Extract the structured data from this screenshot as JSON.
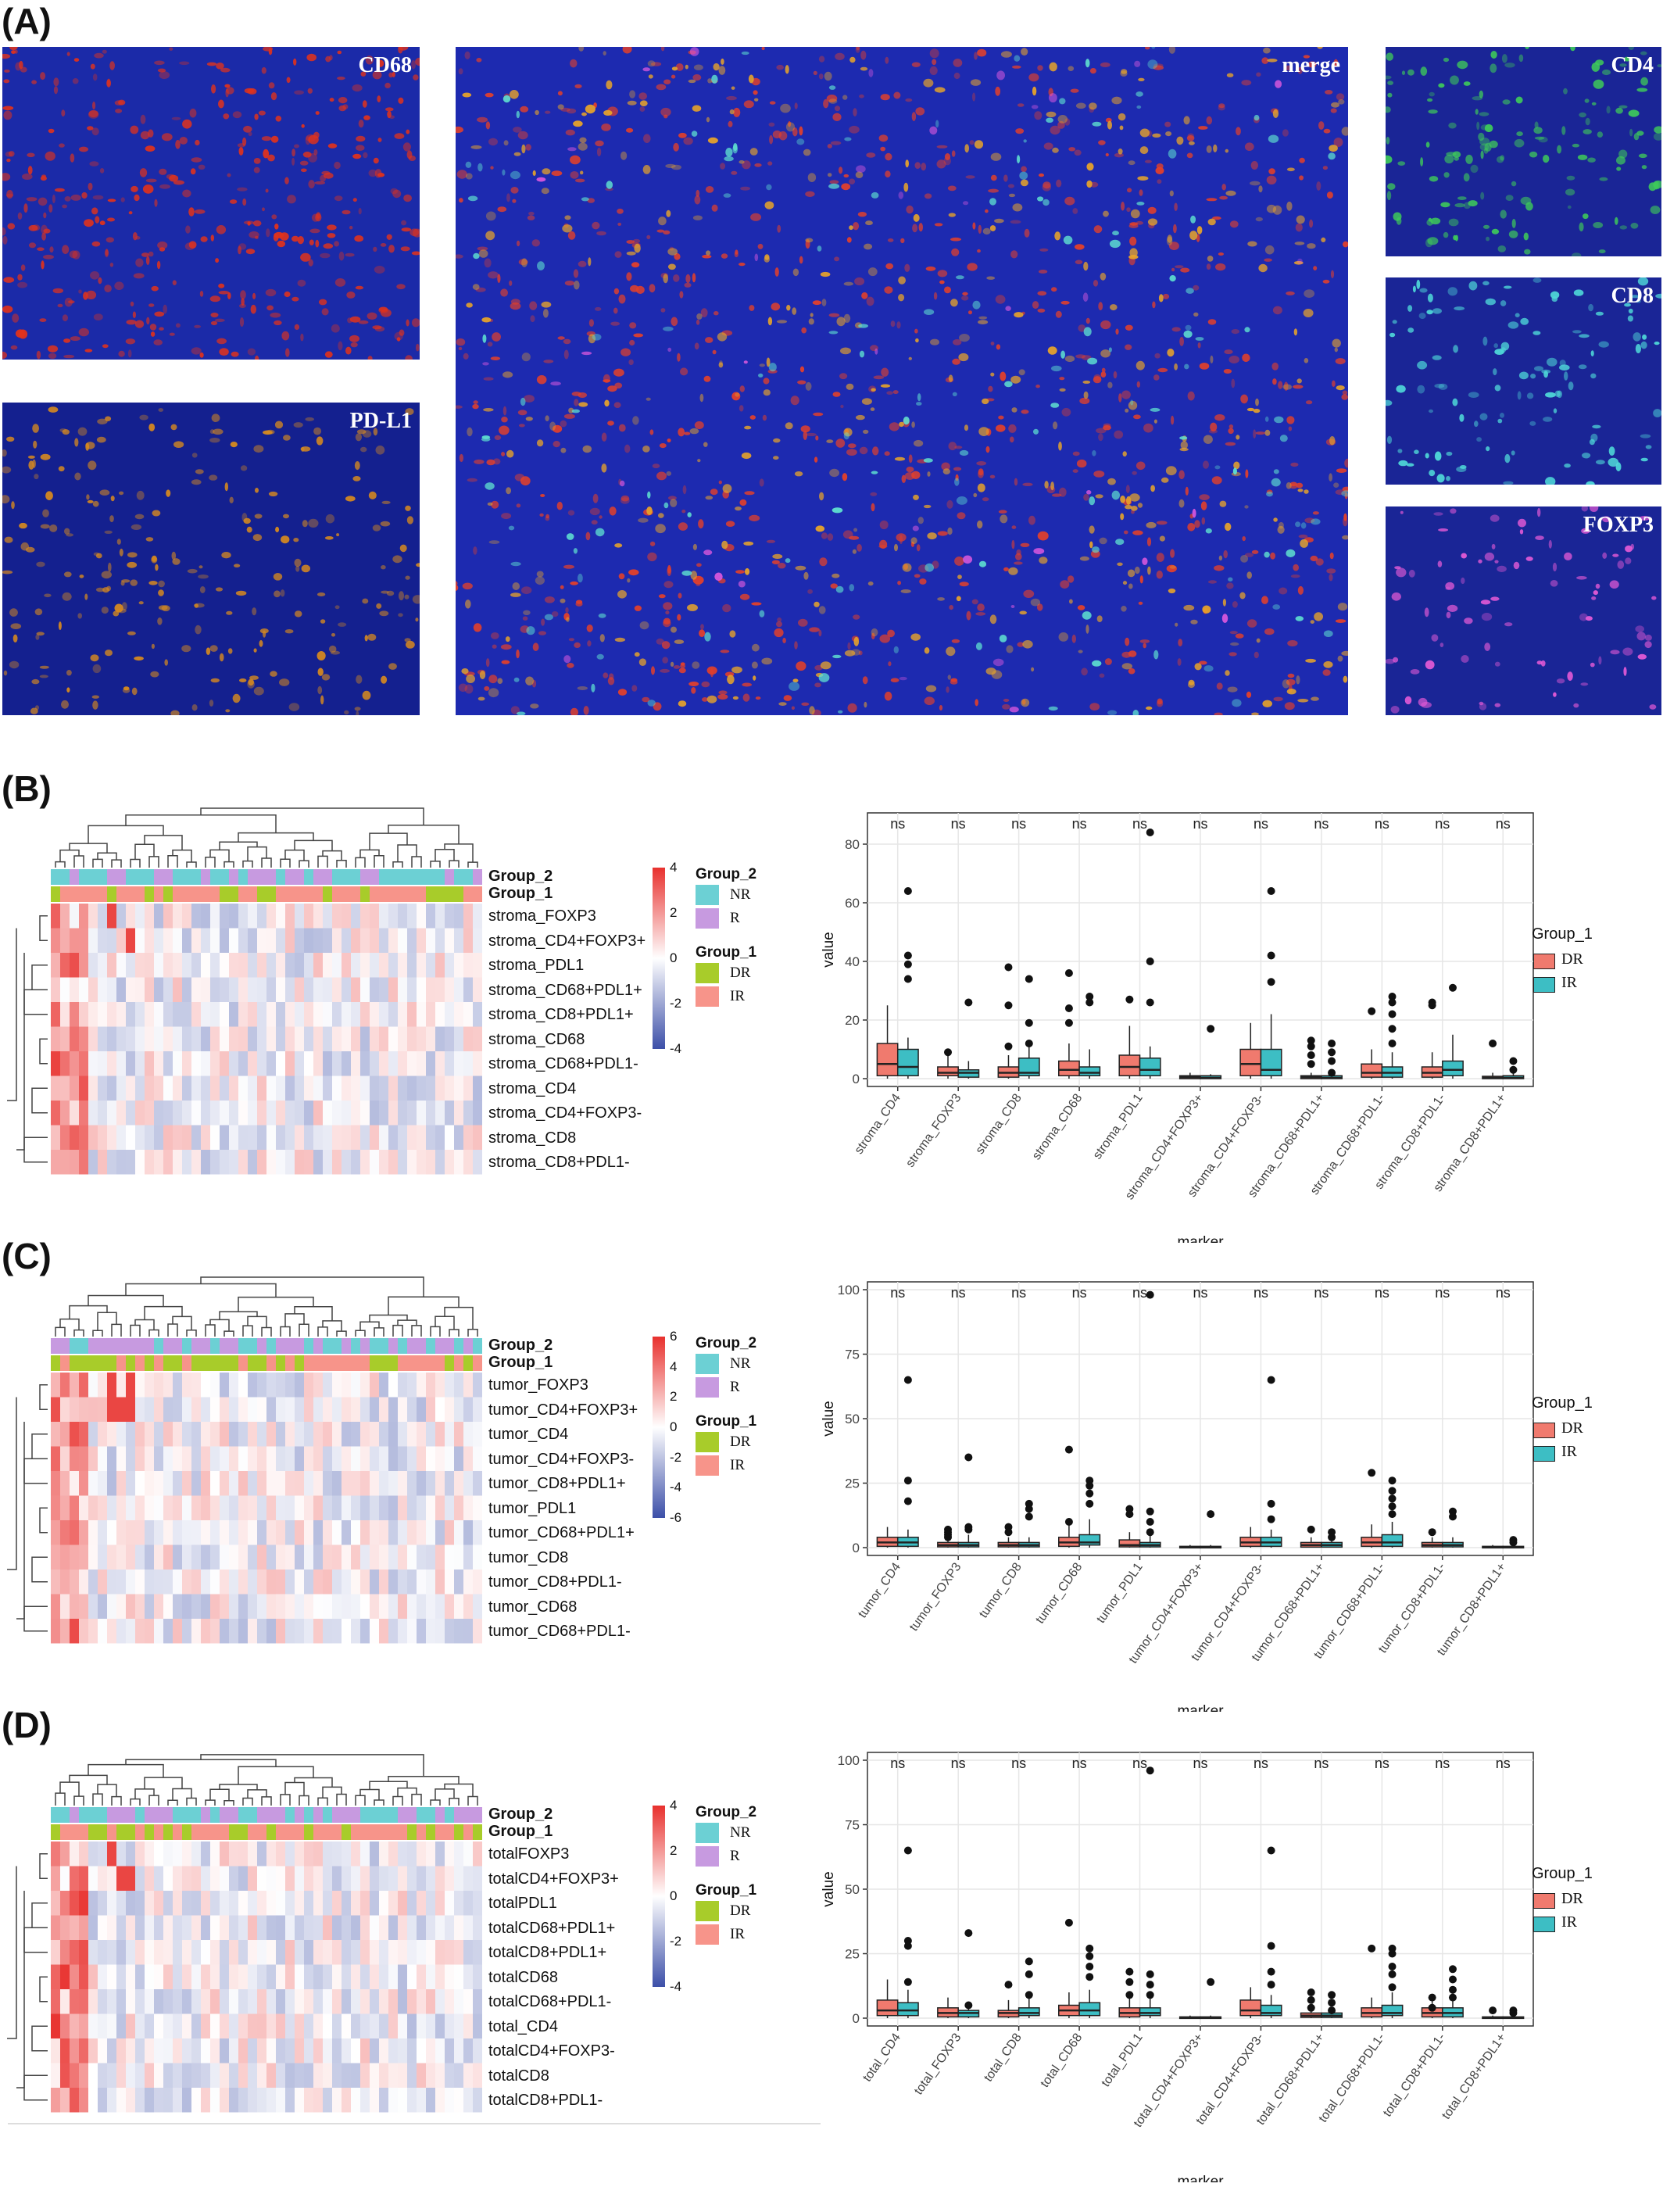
{
  "panels": {
    "A": "(A)",
    "B": "(B)",
    "C": "(C)",
    "D": "(D)"
  },
  "microscopy": {
    "cd68": "CD68",
    "pdl1": "PD-L1",
    "merge": "merge",
    "cd4": "CD4",
    "cd8": "CD8",
    "foxp3": "FOXP3"
  },
  "colors": {
    "NR": "#6cd0d4",
    "R": "#c79ae0",
    "DR": "#a8cc2a",
    "IR": "#f7948a",
    "box_DR": "#f07a6e",
    "box_IR": "#3dbec4",
    "heat_high": "#e8312e",
    "heat_low": "#3c4fa8"
  },
  "legend": {
    "group2_title": "Group_2",
    "nr": "NR",
    "r": "R",
    "group1_title": "Group_1",
    "dr": "DR",
    "ir": "IR",
    "ir_c": "IR"
  },
  "heatmaps": {
    "B": {
      "rows": [
        "stroma_FOXP3",
        "stroma_CD4+FOXP3+",
        "stroma_PDL1",
        "stroma_CD68+PDL1+",
        "stroma_CD8+PDL1+",
        "stroma_CD68",
        "stroma_CD68+PDL1-",
        "stroma_CD4",
        "stroma_CD4+FOXP3-",
        "stroma_CD8",
        "stroma_CD8+PDL1-"
      ],
      "scale": [
        "4",
        "2",
        "0",
        "-2",
        "-4"
      ]
    },
    "C": {
      "rows": [
        "tumor_FOXP3",
        "tumor_CD4+FOXP3+",
        "tumor_CD4",
        "tumor_CD4+FOXP3-",
        "tumor_CD8+PDL1+",
        "tumor_PDL1",
        "tumor_CD68+PDL1+",
        "tumor_CD8",
        "tumor_CD8+PDL1-",
        "tumor_CD68",
        "tumor_CD68+PDL1-"
      ],
      "scale": [
        "6",
        "4",
        "2",
        "0",
        "-2",
        "-4",
        "-6"
      ]
    },
    "D": {
      "rows": [
        "totalFOXP3",
        "totalCD4+FOXP3+",
        "totalPDL1",
        "totalCD68+PDL1+",
        "totalCD8+PDL1+",
        "totalCD68",
        "totalCD68+PDL1-",
        "total_CD4",
        "totalCD4+FOXP3-",
        "totalCD8",
        "totalCD8+PDL1-"
      ],
      "scale": [
        "4",
        "2",
        "0",
        "-2",
        "-4"
      ]
    }
  },
  "chart_data": [
    {
      "type": "box",
      "panel": "B",
      "ylabel": "value",
      "xlabel": "marker",
      "ylim": [
        0,
        88
      ],
      "yticks": [
        0,
        20,
        40,
        60,
        80
      ],
      "sig": "ns",
      "categories": [
        "stroma_CD4",
        "stroma_FOXP3",
        "stroma_CD8",
        "stroma_CD68",
        "stroma_PDL1",
        "stroma_CD4+FOXP3+",
        "stroma_CD4+FOXP3-",
        "stroma_CD68+PDL1+",
        "stroma_CD68+PDL1-",
        "stroma_CD8+PDL1-",
        "stroma_CD8+PDL1+"
      ],
      "series": [
        {
          "name": "DR",
          "boxes": [
            [
              0,
              1,
              5,
              12,
              25
            ],
            [
              0,
              1,
              2,
              4,
              9
            ],
            [
              0,
              0.5,
              2,
              4,
              8
            ],
            [
              0,
              1,
              3,
              6,
              12
            ],
            [
              0,
              1,
              4,
              8,
              18
            ],
            [
              0,
              0,
              0.5,
              1,
              2
            ],
            [
              0,
              1,
              5,
              10,
              19
            ],
            [
              0,
              0,
              0.5,
              1,
              2
            ],
            [
              0,
              0.5,
              2,
              5,
              10
            ],
            [
              0,
              0.5,
              2,
              4,
              9
            ],
            [
              0,
              0,
              0.3,
              0.8,
              2
            ]
          ],
          "outliers": [
            [],
            [
              9
            ],
            [
              38,
              25,
              11
            ],
            [
              36,
              24,
              19
            ],
            [
              27
            ],
            [],
            [],
            [
              13,
              11,
              8,
              5
            ],
            [
              23
            ],
            [
              26,
              25
            ],
            [
              12
            ]
          ]
        },
        {
          "name": "IR",
          "boxes": [
            [
              0,
              1,
              4,
              10,
              14
            ],
            [
              0,
              0.5,
              2,
              3,
              6
            ],
            [
              0,
              1,
              2,
              7,
              12
            ],
            [
              0,
              1,
              2,
              4,
              10
            ],
            [
              0,
              1,
              3,
              7,
              11
            ],
            [
              0,
              0,
              0.3,
              1,
              1.5
            ],
            [
              0,
              1,
              3,
              10,
              22
            ],
            [
              0,
              0,
              0.3,
              1,
              2
            ],
            [
              0,
              0.5,
              2,
              4,
              9
            ],
            [
              0,
              1,
              3,
              6,
              15
            ],
            [
              0,
              0,
              0.3,
              1,
              2
            ]
          ],
          "outliers": [
            [
              64,
              42,
              39,
              34
            ],
            [
              26
            ],
            [
              34,
              19,
              12
            ],
            [
              28,
              26
            ],
            [
              84,
              40,
              26
            ],
            [
              17
            ],
            [
              64,
              42,
              33
            ],
            [
              12,
              9,
              6,
              2
            ],
            [
              28,
              26,
              22,
              17,
              12
            ],
            [
              31
            ],
            [
              6,
              3
            ]
          ]
        }
      ]
    },
    {
      "type": "box",
      "panel": "C",
      "ylabel": "value",
      "xlabel": "marker",
      "ylim": [
        0,
        100
      ],
      "yticks": [
        0,
        25,
        50,
        75,
        100
      ],
      "sig": "ns",
      "categories": [
        "tumor_CD4",
        "tumor_FOXP3",
        "tumor_CD8",
        "tumor_CD68",
        "tumor_PDL1",
        "tumor_CD4+FOXP3+",
        "tumor_CD4+FOXP3-",
        "tumor_CD68+PDL1+",
        "tumor_CD68+PDL1-",
        "tumor_CD8+PDL1-",
        "tumor_CD8+PDL1+"
      ],
      "series": [
        {
          "name": "DR",
          "boxes": [
            [
              0,
              0.5,
              2,
              4,
              8
            ],
            [
              0,
              0.3,
              1,
              2,
              4
            ],
            [
              0,
              0.3,
              1,
              2,
              4
            ],
            [
              0,
              0.5,
              2,
              4,
              9
            ],
            [
              0,
              0.3,
              1,
              3,
              6
            ],
            [
              0,
              0,
              0.2,
              0.5,
              1
            ],
            [
              0,
              0.5,
              2,
              4,
              8
            ],
            [
              0,
              0.2,
              1,
              2,
              4
            ],
            [
              0,
              0.5,
              2,
              4,
              9
            ],
            [
              0,
              0.3,
              1,
              2,
              4
            ],
            [
              0,
              0,
              0.2,
              0.5,
              1
            ]
          ],
          "outliers": [
            [],
            [
              7,
              6,
              5,
              4
            ],
            [
              8,
              6
            ],
            [
              38,
              10
            ],
            [
              15,
              13
            ],
            [],
            [],
            [
              7
            ],
            [
              29
            ],
            [
              6
            ],
            []
          ]
        },
        {
          "name": "IR",
          "boxes": [
            [
              0,
              0.5,
              2,
              4,
              7
            ],
            [
              0,
              0.3,
              1,
              2,
              5
            ],
            [
              0,
              0.3,
              1,
              2,
              4
            ],
            [
              0,
              1,
              2,
              5,
              11
            ],
            [
              0,
              0.3,
              1,
              2,
              5
            ],
            [
              0,
              0,
              0.2,
              0.5,
              1
            ],
            [
              0,
              0.5,
              2,
              4,
              7
            ],
            [
              0,
              0.2,
              1,
              2,
              4
            ],
            [
              0,
              0.5,
              2,
              5,
              10
            ],
            [
              0,
              0.3,
              1,
              2,
              4
            ],
            [
              0,
              0,
              0.2,
              0.5,
              1
            ]
          ],
          "outliers": [
            [
              65,
              26,
              18
            ],
            [
              35,
              8,
              7
            ],
            [
              17,
              15,
              12
            ],
            [
              26,
              24,
              21,
              17
            ],
            [
              98,
              14,
              10,
              6
            ],
            [
              13
            ],
            [
              65,
              17,
              11
            ],
            [
              6,
              4
            ],
            [
              26,
              22,
              19,
              16,
              13
            ],
            [
              14,
              12
            ],
            [
              3,
              2
            ]
          ]
        }
      ]
    },
    {
      "type": "box",
      "panel": "D",
      "ylabel": "value",
      "xlabel": "marker",
      "ylim": [
        0,
        100
      ],
      "yticks": [
        0,
        25,
        50,
        75,
        100
      ],
      "sig": "ns",
      "categories": [
        "total_CD4",
        "total_FOXP3",
        "total_CD8",
        "total_CD68",
        "total_PDL1",
        "total_CD4+FOXP3+",
        "total_CD4+FOXP3-",
        "total_CD68+PDL1+",
        "total_CD68+PDL1-",
        "total_CD8+PDL1-",
        "total_CD8+PDL1+"
      ],
      "series": [
        {
          "name": "DR",
          "boxes": [
            [
              0,
              1,
              3,
              7,
              15
            ],
            [
              0,
              0.5,
              2,
              4,
              8
            ],
            [
              0,
              0.5,
              2,
              3,
              7
            ],
            [
              0,
              1,
              3,
              5,
              10
            ],
            [
              0,
              0.5,
              2,
              4,
              8
            ],
            [
              0,
              0,
              0.2,
              0.5,
              1
            ],
            [
              0,
              1,
              3,
              7,
              12
            ],
            [
              0,
              0.3,
              1,
              2,
              4
            ],
            [
              0,
              0.5,
              2,
              4,
              8
            ],
            [
              0,
              0.5,
              2,
              4,
              8
            ],
            [
              0,
              0,
              0.2,
              0.5,
              1
            ]
          ],
          "outliers": [
            [],
            [],
            [
              13
            ],
            [
              37
            ],
            [
              18,
              14,
              9
            ],
            [],
            [],
            [
              10,
              7,
              4
            ],
            [
              27
            ],
            [
              8,
              4
            ],
            [
              3
            ]
          ]
        },
        {
          "name": "IR",
          "boxes": [
            [
              0,
              1,
              3,
              6,
              11
            ],
            [
              0,
              0.5,
              2,
              3,
              6
            ],
            [
              0,
              1,
              2,
              4,
              8
            ],
            [
              0,
              1,
              3,
              6,
              11
            ],
            [
              0,
              1,
              2,
              4,
              8
            ],
            [
              0,
              0,
              0.2,
              0.5,
              1
            ],
            [
              0,
              1,
              2,
              5,
              9
            ],
            [
              0,
              0.3,
              1,
              2,
              4
            ],
            [
              0,
              1,
              2,
              5,
              10
            ],
            [
              0,
              0.5,
              2,
              4,
              9
            ],
            [
              0,
              0,
              0.2,
              0.5,
              1
            ]
          ],
          "outliers": [
            [
              65,
              30,
              28,
              14
            ],
            [
              33,
              5
            ],
            [
              22,
              17,
              9
            ],
            [
              27,
              24,
              20,
              16
            ],
            [
              96,
              17,
              13,
              9
            ],
            [
              14
            ],
            [
              65,
              28,
              18,
              13
            ],
            [
              9,
              6,
              3
            ],
            [
              27,
              25,
              20,
              17,
              12
            ],
            [
              19,
              15,
              11,
              8
            ],
            [
              3,
              2
            ]
          ]
        }
      ]
    }
  ]
}
